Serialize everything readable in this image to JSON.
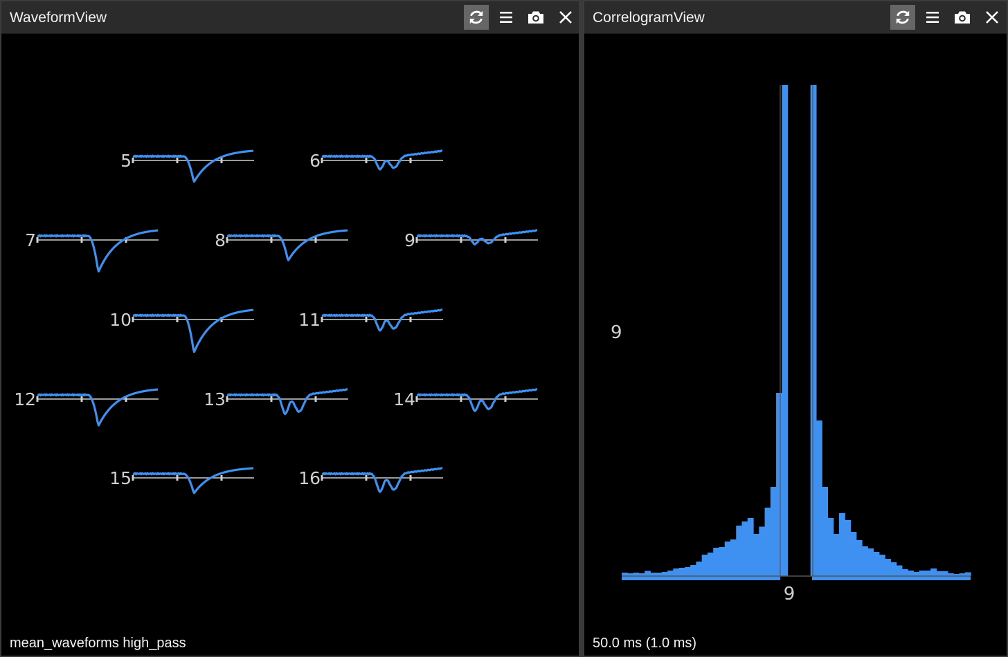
{
  "waveform_view": {
    "title": "WaveformView",
    "status": "mean_waveforms high_pass",
    "toolbar": {
      "icons": [
        "refresh-icon",
        "menu-icon",
        "camera-icon",
        "close-icon"
      ],
      "active": "refresh-icon"
    },
    "channels": [
      {
        "label": "5",
        "shape": "single",
        "depth": 1.05
      },
      {
        "label": "6",
        "shape": "double",
        "depth": 0.65
      },
      {
        "label": "7",
        "shape": "single",
        "depth": 1.55
      },
      {
        "label": "8",
        "shape": "single",
        "depth": 1.0
      },
      {
        "label": "9",
        "shape": "double",
        "depth": 0.42
      },
      {
        "label": "10",
        "shape": "single",
        "depth": 1.6
      },
      {
        "label": "11",
        "shape": "double",
        "depth": 0.75
      },
      {
        "label": "12",
        "shape": "single",
        "depth": 1.3
      },
      {
        "label": "13",
        "shape": "double",
        "depth": 0.95
      },
      {
        "label": "14",
        "shape": "double",
        "depth": 0.8
      },
      {
        "label": "15",
        "shape": "single",
        "depth": 0.75
      },
      {
        "label": "16",
        "shape": "double",
        "depth": 0.9
      }
    ],
    "colors": {
      "trace": "#3e91f0",
      "axis": "#cfcfcf",
      "label": "#d0d0d0"
    }
  },
  "correlogram_view": {
    "title": "CorrelogramView",
    "status": "50.0 ms (1.0 ms)",
    "toolbar": {
      "icons": [
        "refresh-icon",
        "menu-icon",
        "camera-icon",
        "close-icon"
      ],
      "active": "refresh-icon"
    },
    "cluster_label_y": "9",
    "cluster_label_x": "9",
    "chart_data": {
      "type": "bar",
      "title": "",
      "bin_ms": 1.0,
      "window_ms": 50.0,
      "values": [
        2,
        1.6,
        2,
        1.6,
        3,
        2,
        2,
        2.4,
        3.2,
        4.4,
        4.8,
        5.2,
        6.4,
        8.4,
        12.4,
        13.6,
        16.4,
        16.8,
        20,
        21.2,
        29.2,
        31.6,
        33.6,
        24.4,
        28.6,
        39.6,
        51.6,
        106,
        290,
        0,
        0,
        0,
        0,
        290,
        90,
        51.6,
        33.6,
        24.4,
        36.4,
        32.4,
        25.6,
        20.8,
        17.2,
        16,
        14,
        12.4,
        10,
        8,
        6.2,
        4,
        3.2,
        2.4,
        3.2,
        3.2,
        4.4,
        2.8,
        2.8,
        1.6,
        1.2,
        1.6,
        2.2
      ],
      "colors": {
        "bar": "#3e91f0",
        "baseline": "#555555"
      }
    }
  }
}
